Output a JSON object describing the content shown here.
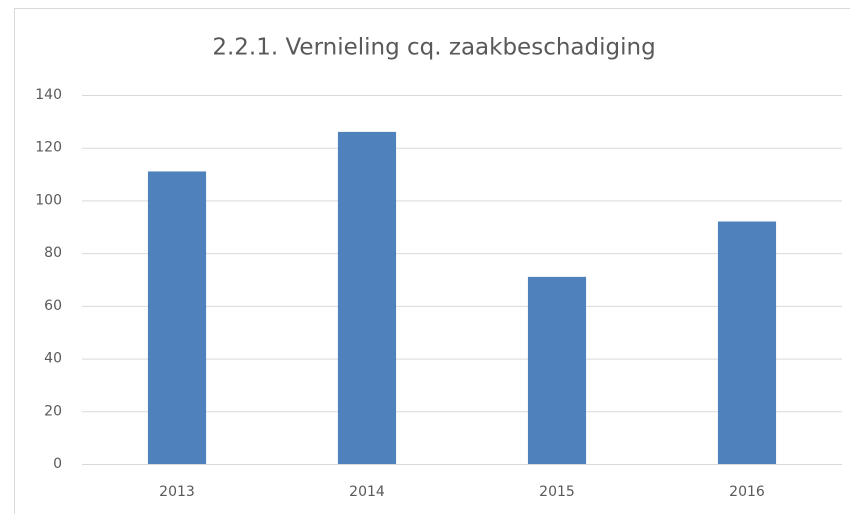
{
  "chart_data": {
    "type": "bar",
    "title": "2.2.1. Vernieling cq. zaakbeschadiging",
    "categories": [
      "2013",
      "2014",
      "2015",
      "2016"
    ],
    "values": [
      111,
      126,
      71,
      92
    ],
    "color": "#4f81bd",
    "ylim": [
      0,
      140
    ],
    "yticks": [
      0,
      20,
      40,
      60,
      80,
      100,
      120,
      140
    ],
    "grid": true
  }
}
